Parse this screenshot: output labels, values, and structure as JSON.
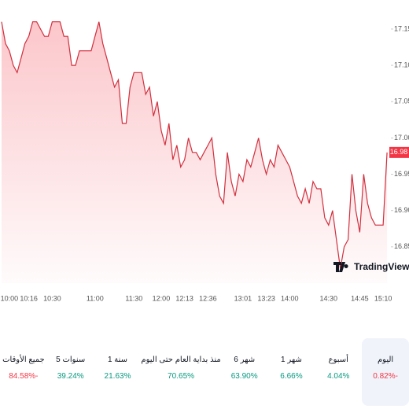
{
  "chart_data": {
    "type": "line",
    "categories": [
      null,
      null,
      "10:00",
      null,
      null,
      null,
      null,
      "10:16",
      null,
      null,
      null,
      null,
      null,
      "10:30",
      null,
      null,
      null,
      null,
      null,
      null,
      null,
      null,
      null,
      null,
      "11:00",
      null,
      null,
      null,
      null,
      null,
      null,
      null,
      null,
      null,
      "11:30",
      null,
      null,
      null,
      null,
      null,
      null,
      "12:00",
      null,
      null,
      null,
      null,
      null,
      "12:13",
      null,
      null,
      null,
      null,
      null,
      "12:36",
      null,
      null,
      null,
      null,
      null,
      null,
      null,
      null,
      "13:01",
      null,
      null,
      null,
      null,
      null,
      "13:23",
      null,
      null,
      null,
      null,
      null,
      "14:00",
      null,
      null,
      null,
      null,
      null,
      null,
      null,
      null,
      null,
      "14:30",
      null,
      null,
      null,
      null,
      null,
      null,
      null,
      "14:45",
      null,
      null,
      null,
      null,
      null,
      "15:10",
      null
    ],
    "series": [
      {
        "color": "#d12f3d",
        "values": [
          17.16,
          17.13,
          17.12,
          17.1,
          17.09,
          17.11,
          17.13,
          17.14,
          17.16,
          17.16,
          17.15,
          17.14,
          17.14,
          17.16,
          17.16,
          17.16,
          17.14,
          17.14,
          17.1,
          17.1,
          17.12,
          17.12,
          17.12,
          17.12,
          17.14,
          17.16,
          17.13,
          17.11,
          17.09,
          17.07,
          17.08,
          17.02,
          17.02,
          17.07,
          17.09,
          17.09,
          17.09,
          17.06,
          17.07,
          17.03,
          17.05,
          17.01,
          16.99,
          17.02,
          16.97,
          16.99,
          16.96,
          16.97,
          17.0,
          16.98,
          16.98,
          16.97,
          16.98,
          16.99,
          17.0,
          16.95,
          16.92,
          16.91,
          16.98,
          16.94,
          16.92,
          16.95,
          16.94,
          16.97,
          16.96,
          16.98,
          17.0,
          16.97,
          16.95,
          16.97,
          16.96,
          16.99,
          16.98,
          16.97,
          16.96,
          16.94,
          16.92,
          16.91,
          16.93,
          16.91,
          16.94,
          16.93,
          16.93,
          16.89,
          16.88,
          16.9,
          16.86,
          16.82,
          16.85,
          16.86,
          16.95,
          16.9,
          16.87,
          16.95,
          16.91,
          16.89,
          16.88,
          16.88,
          16.88,
          16.98
        ]
      }
    ],
    "ylim": [
      16.8,
      17.19
    ],
    "yticks": [
      {
        "value": 16.85,
        "label": "16.85"
      },
      {
        "value": 16.9,
        "label": "16.90"
      },
      {
        "value": 16.95,
        "label": "16.95"
      },
      {
        "value": 17.0,
        "label": "17.00"
      },
      {
        "value": 17.05,
        "label": "17.05"
      },
      {
        "value": 17.1,
        "label": "17.10"
      },
      {
        "value": 17.15,
        "label": "17.15"
      }
    ],
    "last_value": {
      "value": 16.98,
      "label": "16.98"
    },
    "watermark": "TradingView",
    "grid": false
  },
  "performance": [
    {
      "label": "اليوم",
      "value": "-0.82%",
      "trend": "down",
      "selected": true
    },
    {
      "label": "أسبوع",
      "value": "4.04%",
      "trend": "up"
    },
    {
      "label": "1 شهر",
      "value": "6.66%",
      "trend": "up"
    },
    {
      "label": "6 شهر",
      "value": "63.90%",
      "trend": "up"
    },
    {
      "label": "منذ بداية العام حتى اليوم",
      "value": "70.65%",
      "trend": "up"
    },
    {
      "label": "1 سنة",
      "value": "21.63%",
      "trend": "up"
    },
    {
      "label": "5 سنوات",
      "value": "39.24%",
      "trend": "up"
    },
    {
      "label": "جميع الأوقات",
      "value": "-84.58%",
      "trend": "down"
    }
  ]
}
